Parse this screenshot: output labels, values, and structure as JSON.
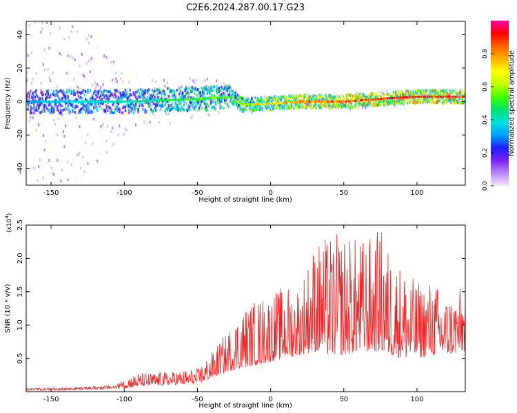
{
  "title": "C2E6.2024.287.00.17.G23",
  "chart_data": [
    {
      "type": "heatmap",
      "xlabel": "Height of straight line (km)",
      "ylabel": "Frequency (Hz)",
      "xlim": [
        -167,
        133
      ],
      "ylim": [
        -50,
        48
      ],
      "x_ticks": [
        -150,
        -100,
        -50,
        0,
        50,
        100
      ],
      "x_tick_labels": [
        "-150",
        "-100",
        "-50",
        "0",
        "50",
        "100"
      ],
      "y_ticks": [
        -40,
        -20,
        0,
        20,
        40
      ],
      "y_tick_labels": [
        "-40",
        "-20",
        "0",
        "20",
        "40"
      ],
      "colorbar": {
        "label": "Normalized spectral amplitude",
        "range": [
          0,
          1
        ],
        "ticks": [
          0.0,
          0.2,
          0.4,
          0.6,
          0.8
        ],
        "tick_labels": [
          "0.0",
          "0.2",
          "0.4",
          "0.6",
          "0.8"
        ],
        "colors": [
          "#f2e6ff",
          "#b98af7",
          "#7a22f0",
          "#2020ff",
          "#00a0ff",
          "#00e0e0",
          "#00e070",
          "#40ff00",
          "#c0ff00",
          "#ffff00",
          "#ffb000",
          "#ff6000",
          "#ff0000",
          "#ff00a0"
        ]
      },
      "trace": {
        "description_points_x": [
          -167,
          -130,
          -100,
          -70,
          -40,
          -27,
          -20,
          0,
          20,
          50,
          80,
          100,
          133
        ],
        "center_freq": [
          0,
          0,
          0,
          1,
          2,
          3,
          -2,
          -1,
          0,
          0,
          2,
          3,
          3
        ],
        "amplitude": [
          0.35,
          0.45,
          0.45,
          0.55,
          0.6,
          0.6,
          0.65,
          0.8,
          0.85,
          0.9,
          0.95,
          0.95,
          0.95
        ],
        "noise_spread_hz": [
          48,
          48,
          20,
          15,
          12,
          8,
          6,
          4,
          4,
          5,
          5,
          4,
          4
        ]
      },
      "grid": false
    },
    {
      "type": "line",
      "xlabel": "Height of straight line (km)",
      "ylabel": "SNR (10 * v/v)",
      "y_multiplier_label": "(x10",
      "y_multiplier_exp": "4",
      "y_multiplier_close": ")",
      "xlim": [
        -167,
        133
      ],
      "ylim": [
        0,
        2.5
      ],
      "x_ticks": [
        -150,
        -100,
        -50,
        0,
        50,
        100
      ],
      "x_tick_labels": [
        "-150",
        "-100",
        "-50",
        "0",
        "50",
        "100"
      ],
      "y_ticks": [
        0.5,
        1.0,
        1.5,
        2.0,
        2.5
      ],
      "y_tick_labels": [
        "0.5",
        "1.0",
        "1.5",
        "2.0",
        "2.5"
      ],
      "line_color": "#ee2222",
      "envelope": {
        "x": [
          -167,
          -140,
          -120,
          -105,
          -100,
          -90,
          -70,
          -50,
          -40,
          -30,
          -20,
          -10,
          0,
          10,
          20,
          30,
          40,
          50,
          60,
          70,
          75,
          80,
          90,
          100,
          110,
          120,
          133
        ],
        "base": [
          0.02,
          0.02,
          0.03,
          0.04,
          0.05,
          0.08,
          0.1,
          0.12,
          0.2,
          0.3,
          0.35,
          0.4,
          0.45,
          0.5,
          0.55,
          0.6,
          0.55,
          0.55,
          0.6,
          0.6,
          0.6,
          0.55,
          0.5,
          0.5,
          0.55,
          0.55,
          0.6
        ],
        "peak": [
          0.05,
          0.06,
          0.08,
          0.1,
          0.22,
          0.28,
          0.3,
          0.35,
          0.6,
          0.9,
          1.25,
          1.4,
          1.5,
          1.6,
          1.65,
          2.25,
          2.35,
          2.4,
          2.3,
          2.35,
          2.5,
          2.2,
          1.9,
          1.65,
          1.7,
          1.45,
          1.6
        ]
      },
      "grid": false
    }
  ]
}
